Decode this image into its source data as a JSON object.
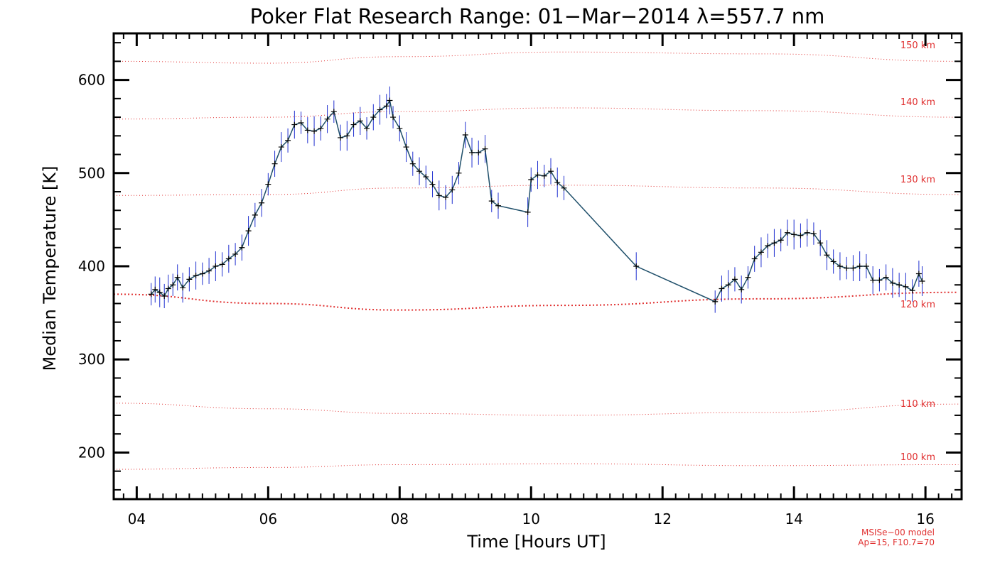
{
  "chart_data": {
    "type": "line",
    "title": "Poker Flat Research Range: 01−Mar−2014 λ=557.7 nm",
    "xlabel": "Time [Hours UT]",
    "ylabel": "Median Temperature [K]",
    "xlim": [
      3.65,
      16.55
    ],
    "ylim": [
      150,
      650
    ],
    "x_ticks": [
      4,
      6,
      8,
      10,
      12,
      14,
      16
    ],
    "x_tick_labels": [
      "04",
      "06",
      "08",
      "10",
      "12",
      "14",
      "16"
    ],
    "y_ticks": [
      200,
      300,
      400,
      500,
      600
    ],
    "y_tick_labels": [
      "200",
      "300",
      "400",
      "500",
      "600"
    ],
    "grid": false,
    "series": [
      {
        "color": "#000000",
        "error_color": "#2030d0",
        "x": [
          4.22,
          4.28,
          4.35,
          4.42,
          4.48,
          4.55,
          4.62,
          4.7,
          4.8,
          4.9,
          5.0,
          5.1,
          5.2,
          5.3,
          5.4,
          5.5,
          5.6,
          5.7,
          5.8,
          5.9,
          6.0,
          6.1,
          6.2,
          6.3,
          6.4,
          6.5,
          6.6,
          6.7,
          6.8,
          6.9,
          7.0,
          7.1,
          7.2,
          7.3,
          7.4,
          7.5,
          7.6,
          7.7,
          7.8,
          7.85,
          7.9,
          8.0,
          8.1,
          8.2,
          8.3,
          8.4,
          8.5,
          8.6,
          8.7,
          8.8,
          8.9,
          9.0,
          9.1,
          9.2,
          9.3,
          9.4,
          9.5,
          9.95,
          10.0,
          10.1,
          10.2,
          10.3,
          10.4,
          10.5,
          11.6,
          12.8,
          12.9,
          13.0,
          13.1,
          13.2,
          13.3,
          13.4,
          13.5,
          13.6,
          13.7,
          13.8,
          13.9,
          14.0,
          14.1,
          14.2,
          14.3,
          14.4,
          14.5,
          14.6,
          14.7,
          14.8,
          14.9,
          15.0,
          15.1,
          15.2,
          15.3,
          15.4,
          15.5,
          15.6,
          15.7,
          15.8,
          15.9,
          15.95
        ],
        "y": [
          370,
          375,
          372,
          368,
          376,
          380,
          388,
          377,
          386,
          390,
          392,
          395,
          400,
          402,
          408,
          413,
          420,
          438,
          455,
          468,
          488,
          510,
          528,
          535,
          552,
          554,
          546,
          545,
          548,
          558,
          566,
          538,
          540,
          552,
          556,
          548,
          560,
          568,
          572,
          578,
          560,
          548,
          528,
          510,
          502,
          496,
          488,
          476,
          474,
          482,
          500,
          541,
          522,
          522,
          526,
          470,
          465,
          458,
          493,
          498,
          497,
          502,
          490,
          484,
          400,
          362,
          376,
          380,
          386,
          375,
          388,
          408,
          415,
          422,
          425,
          428,
          436,
          434,
          433,
          436,
          435,
          425,
          412,
          405,
          400,
          398,
          398,
          400,
          400,
          385,
          385,
          388,
          382,
          380,
          378,
          374,
          392,
          384
        ],
        "error": 12
      }
    ],
    "altitude_contours": [
      {
        "label": "100 km",
        "y": [
          182,
          184,
          187,
          188,
          186,
          187
        ]
      },
      {
        "label": "110 km",
        "y": [
          253,
          247,
          242,
          240,
          243,
          252
        ]
      },
      {
        "label": "120 km",
        "y": [
          370,
          360,
          353,
          358,
          365,
          372
        ]
      },
      {
        "label": "130 km",
        "y": [
          476,
          477,
          484,
          487,
          484,
          477
        ]
      },
      {
        "label": "140 km",
        "y": [
          558,
          560,
          566,
          570,
          567,
          560
        ]
      },
      {
        "label": "150 km",
        "y": [
          620,
          618,
          625,
          630,
          628,
          620
        ]
      }
    ],
    "contour_x": [
      3.65,
      6.0,
      8.0,
      10.5,
      13.5,
      16.5
    ],
    "model_note": [
      "MSISe−00 model",
      "Ap=15, F10.7=70"
    ]
  },
  "colors": {
    "data_line": "#000000",
    "error_bars": "#2030d0",
    "contours": "#e03030"
  }
}
